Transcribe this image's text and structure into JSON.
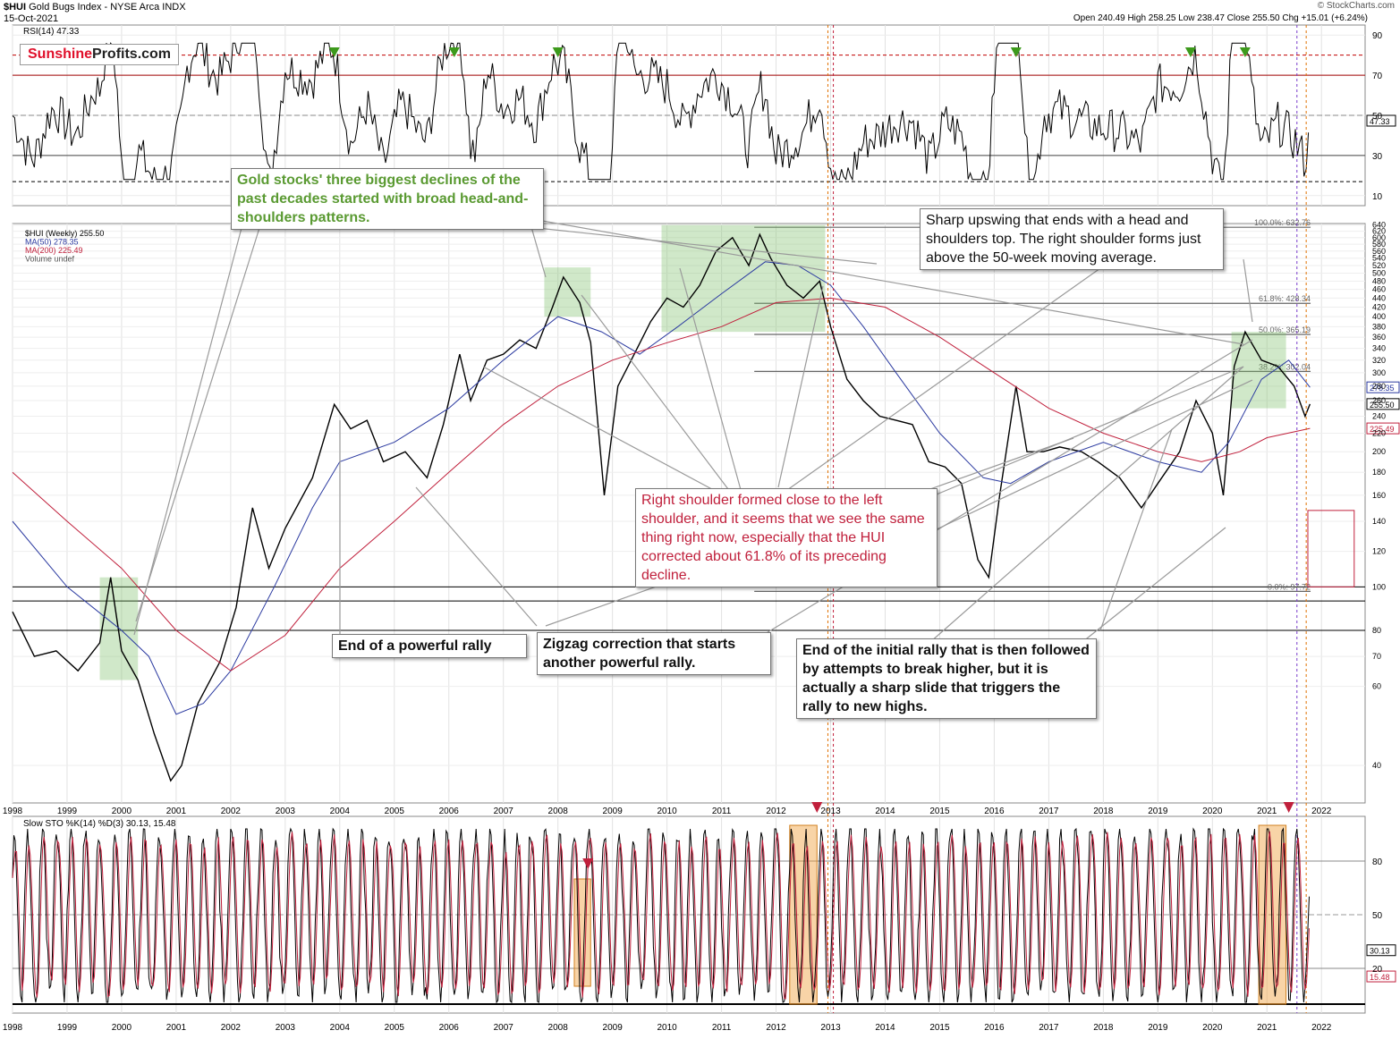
{
  "header": {
    "symbol": "$HUI",
    "name": "Gold Bugs Index - NYSE Arca INDX",
    "date": "15-Oct-2021",
    "stamp": "© StockCharts.com",
    "ohlc": "Open 240.49  High 258.25  Low 238.47  Close 255.50  Chg +15.01 (+6.24%)"
  },
  "logo": {
    "part1": "Sunshine",
    "part2": "Profits.com"
  },
  "annotations": {
    "hs_patterns": "Gold stocks' three biggest declines of the past decades started with broad head-and-shoulders patterns.",
    "sharp_upswing": "Sharp upswing that ends with a head and shoulders top. The right shoulder forms just above the 50-week moving average.",
    "right_shoulder": "Right shoulder formed close to the left shoulder, and it seems that we see the same thing right now, especially that the HUI corrected about 61.8% of its preceding decline.",
    "end_rally": "End of a powerful rally",
    "zigzag": "Zigzag correction that starts another powerful rally.",
    "initial_rally": "End of the initial rally that is then followed by attempts to break higher, but it is actually a sharp slide that triggers the rally to new highs."
  },
  "chart_data": [
    {
      "type": "line",
      "panel": "RSI",
      "legend": "RSI(14) 47.33",
      "last_value": 47.33,
      "x_range": [
        1998,
        2022.8
      ],
      "ylim": [
        5,
        95
      ],
      "y_ticks": [
        10,
        30,
        50,
        70,
        90
      ],
      "reference_lines": [
        30,
        50,
        70,
        80,
        17
      ],
      "grid": true
    },
    {
      "type": "line",
      "panel": "Price (log scale)",
      "legend": [
        "$HUI (Weekly) 255.50",
        "MA(50) 278.35",
        "MA(200) 225.49",
        "Volume undef"
      ],
      "series": [
        {
          "name": "$HUI (Weekly) 255.50",
          "color": "#000000",
          "x": [
            1998.0,
            1998.4,
            1998.8,
            1999.2,
            1999.6,
            1999.8,
            2000.0,
            2000.3,
            2000.6,
            2000.9,
            2001.1,
            2001.4,
            2001.8,
            2002.1,
            2002.4,
            2002.7,
            2003.0,
            2003.5,
            2003.9,
            2004.2,
            2004.5,
            2004.8,
            2005.2,
            2005.6,
            2005.9,
            2006.2,
            2006.4,
            2006.7,
            2007.0,
            2007.3,
            2007.6,
            2007.9,
            2008.1,
            2008.4,
            2008.6,
            2008.85,
            2009.1,
            2009.4,
            2009.7,
            2010.0,
            2010.3,
            2010.6,
            2010.9,
            2011.2,
            2011.5,
            2011.7,
            2011.9,
            2012.2,
            2012.5,
            2012.8,
            2013.0,
            2013.3,
            2013.6,
            2013.9,
            2014.2,
            2014.5,
            2014.8,
            2015.1,
            2015.4,
            2015.7,
            2015.9,
            2016.1,
            2016.4,
            2016.6,
            2016.9,
            2017.2,
            2017.6,
            2017.9,
            2018.3,
            2018.7,
            2019.0,
            2019.4,
            2019.7,
            2020.0,
            2020.2,
            2020.4,
            2020.6,
            2020.9,
            2021.2,
            2021.5,
            2021.7,
            2021.79
          ],
          "y": [
            88,
            70,
            72,
            65,
            75,
            105,
            72,
            62,
            47,
            37,
            40,
            55,
            68,
            90,
            150,
            110,
            135,
            175,
            255,
            225,
            235,
            190,
            200,
            175,
            230,
            330,
            260,
            320,
            330,
            355,
            340,
            420,
            490,
            430,
            350,
            160,
            280,
            330,
            390,
            440,
            420,
            470,
            560,
            600,
            520,
            610,
            540,
            470,
            440,
            480,
            380,
            290,
            260,
            240,
            235,
            230,
            190,
            185,
            170,
            115,
            105,
            160,
            280,
            200,
            200,
            205,
            200,
            190,
            175,
            150,
            170,
            200,
            260,
            220,
            160,
            310,
            370,
            320,
            310,
            280,
            240,
            255.5
          ]
        },
        {
          "name": "MA(50) 278.35",
          "color": "#2b3aa0",
          "x": [
            1998.0,
            1999.0,
            2000.0,
            2000.5,
            2001.0,
            2001.5,
            2002.0,
            2002.8,
            2003.5,
            2004.0,
            2005.0,
            2006.0,
            2007.0,
            2008.0,
            2008.8,
            2009.5,
            2010.2,
            2011.0,
            2011.8,
            2012.4,
            2013.0,
            2013.6,
            2014.2,
            2015.0,
            2015.8,
            2016.3,
            2017.0,
            2018.0,
            2019.0,
            2019.8,
            2020.3,
            2020.9,
            2021.4,
            2021.79
          ],
          "y": [
            140,
            100,
            80,
            70,
            52,
            55,
            65,
            100,
            150,
            190,
            210,
            250,
            320,
            400,
            370,
            330,
            380,
            450,
            530,
            520,
            470,
            380,
            300,
            220,
            175,
            170,
            190,
            210,
            190,
            180,
            210,
            290,
            320,
            278.35
          ]
        },
        {
          "name": "MA(200) 225.49",
          "color": "#c0203c",
          "x": [
            1998.0,
            1999.0,
            2000.0,
            2001.0,
            2002.0,
            2003.0,
            2004.0,
            2005.0,
            2006.0,
            2007.0,
            2008.0,
            2009.0,
            2010.0,
            2011.0,
            2012.0,
            2013.0,
            2014.0,
            2015.0,
            2016.0,
            2017.0,
            2018.0,
            2019.0,
            2019.8,
            2020.5,
            2021.0,
            2021.79
          ],
          "y": [
            180,
            140,
            110,
            80,
            65,
            78,
            110,
            140,
            180,
            230,
            280,
            320,
            350,
            380,
            430,
            440,
            420,
            360,
            300,
            250,
            220,
            200,
            190,
            200,
            215,
            225.49
          ]
        }
      ],
      "x_labels": [
        "1998",
        "1999",
        "2000",
        "2001",
        "2002",
        "2003",
        "2004",
        "2005",
        "2006",
        "2007",
        "2008",
        "2009",
        "2010",
        "2011",
        "2012",
        "2013",
        "2014",
        "2015",
        "2016",
        "2017",
        "2018",
        "2019",
        "2020",
        "2021",
        "2022"
      ],
      "y_ticks": [
        40,
        60,
        70,
        80,
        100,
        120,
        140,
        160,
        180,
        200,
        220,
        240,
        260,
        280,
        300,
        320,
        340,
        360,
        380,
        400,
        420,
        440,
        460,
        480,
        500,
        520,
        540,
        560,
        580,
        600,
        620,
        640
      ],
      "ylim": [
        33,
        645
      ],
      "price_tags": [
        {
          "value": 278.35,
          "text": "278.35"
        },
        {
          "value": 255.5,
          "text": "255.50"
        },
        {
          "value": 225.49,
          "text": "225.49"
        }
      ],
      "fibonacci": [
        {
          "label": "100.0%: 632.76",
          "value": 632.76
        },
        {
          "label": "61.8%: 428.34",
          "value": 428.34
        },
        {
          "label": "50.0%: 365.19",
          "value": 365.19
        },
        {
          "label": "38.2%: 302.04",
          "value": 302.04
        },
        {
          "label": "0.0%: 97.72",
          "value": 97.72
        }
      ],
      "grid": true
    },
    {
      "type": "line",
      "panel": "Slow Stochastic",
      "legend": "Slow STO %K(14) %D(3) 30.13, 15.48",
      "k_last": 30.13,
      "d_last": 15.48,
      "ylim": [
        0,
        100
      ],
      "y_ticks": [
        20,
        50,
        80
      ],
      "x_labels": [
        "1998",
        "1999",
        "2000",
        "2001",
        "2002",
        "2003",
        "2004",
        "2005",
        "2006",
        "2007",
        "2008",
        "2009",
        "2010",
        "2011",
        "2012",
        "2013",
        "2014",
        "2015",
        "2016",
        "2017",
        "2018",
        "2019",
        "2020",
        "2021",
        "2022"
      ],
      "grid": true
    }
  ]
}
